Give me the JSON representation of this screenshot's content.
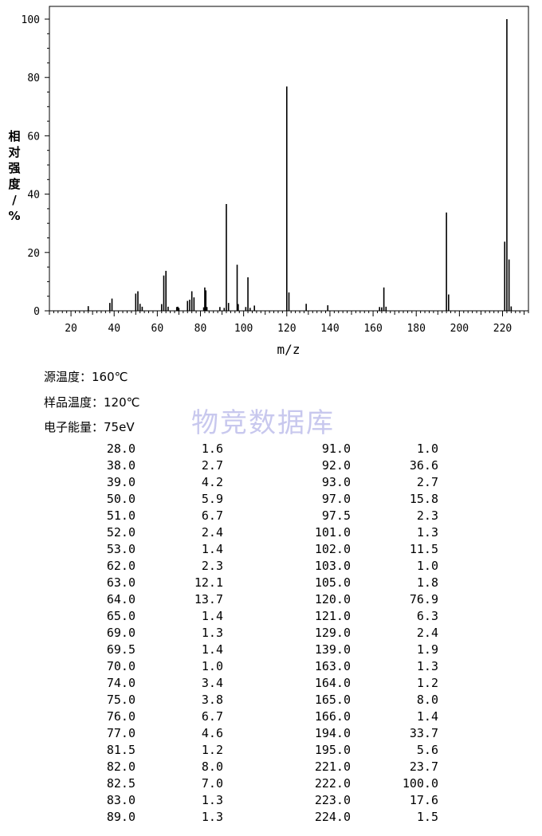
{
  "chart_data": {
    "type": "bar",
    "xlabel": "m/z",
    "ylabel": "相对强度/%",
    "xlim": [
      10,
      232
    ],
    "ylim": [
      0,
      100
    ],
    "x_ticks": [
      20,
      40,
      60,
      80,
      100,
      120,
      140,
      160,
      180,
      200,
      220
    ],
    "y_ticks": [
      0,
      20,
      40,
      60,
      80,
      100
    ],
    "peaks": [
      [
        28.0,
        1.6
      ],
      [
        38.0,
        2.7
      ],
      [
        39.0,
        4.2
      ],
      [
        50.0,
        5.9
      ],
      [
        51.0,
        6.7
      ],
      [
        52.0,
        2.4
      ],
      [
        53.0,
        1.4
      ],
      [
        62.0,
        2.3
      ],
      [
        63.0,
        12.1
      ],
      [
        64.0,
        13.7
      ],
      [
        65.0,
        1.4
      ],
      [
        69.0,
        1.3
      ],
      [
        69.5,
        1.4
      ],
      [
        70.0,
        1.0
      ],
      [
        74.0,
        3.4
      ],
      [
        75.0,
        3.8
      ],
      [
        76.0,
        6.7
      ],
      [
        77.0,
        4.6
      ],
      [
        81.5,
        1.2
      ],
      [
        82.0,
        8.0
      ],
      [
        82.5,
        7.0
      ],
      [
        83.0,
        1.3
      ],
      [
        89.0,
        1.3
      ],
      [
        91.0,
        1.0
      ],
      [
        92.0,
        36.6
      ],
      [
        93.0,
        2.7
      ],
      [
        97.0,
        15.8
      ],
      [
        97.5,
        2.3
      ],
      [
        101.0,
        1.3
      ],
      [
        102.0,
        11.5
      ],
      [
        103.0,
        1.0
      ],
      [
        105.0,
        1.8
      ],
      [
        120.0,
        76.9
      ],
      [
        121.0,
        6.3
      ],
      [
        129.0,
        2.4
      ],
      [
        139.0,
        1.9
      ],
      [
        163.0,
        1.3
      ],
      [
        164.0,
        1.2
      ],
      [
        165.0,
        8.0
      ],
      [
        166.0,
        1.4
      ],
      [
        194.0,
        33.7
      ],
      [
        195.0,
        5.6
      ],
      [
        221.0,
        23.7
      ],
      [
        222.0,
        100.0
      ],
      [
        223.0,
        17.6
      ],
      [
        224.0,
        1.5
      ]
    ]
  },
  "conditions": {
    "source_temp": "源温度：160℃",
    "sample_temp": "样品温度：120℃",
    "electron_energy": "电子能量：75eV"
  },
  "watermark": "物竞数据库",
  "table": {
    "left": [
      [
        "28.0",
        "1.6"
      ],
      [
        "38.0",
        "2.7"
      ],
      [
        "39.0",
        "4.2"
      ],
      [
        "50.0",
        "5.9"
      ],
      [
        "51.0",
        "6.7"
      ],
      [
        "52.0",
        "2.4"
      ],
      [
        "53.0",
        "1.4"
      ],
      [
        "62.0",
        "2.3"
      ],
      [
        "63.0",
        "12.1"
      ],
      [
        "64.0",
        "13.7"
      ],
      [
        "65.0",
        "1.4"
      ],
      [
        "69.0",
        "1.3"
      ],
      [
        "69.5",
        "1.4"
      ],
      [
        "70.0",
        "1.0"
      ],
      [
        "74.0",
        "3.4"
      ],
      [
        "75.0",
        "3.8"
      ],
      [
        "76.0",
        "6.7"
      ],
      [
        "77.0",
        "4.6"
      ],
      [
        "81.5",
        "1.2"
      ],
      [
        "82.0",
        "8.0"
      ],
      [
        "82.5",
        "7.0"
      ],
      [
        "83.0",
        "1.3"
      ],
      [
        "89.0",
        "1.3"
      ]
    ],
    "right": [
      [
        "91.0",
        "1.0"
      ],
      [
        "92.0",
        "36.6"
      ],
      [
        "93.0",
        "2.7"
      ],
      [
        "97.0",
        "15.8"
      ],
      [
        "97.5",
        "2.3"
      ],
      [
        "101.0",
        "1.3"
      ],
      [
        "102.0",
        "11.5"
      ],
      [
        "103.0",
        "1.0"
      ],
      [
        "105.0",
        "1.8"
      ],
      [
        "120.0",
        "76.9"
      ],
      [
        "121.0",
        "6.3"
      ],
      [
        "129.0",
        "2.4"
      ],
      [
        "139.0",
        "1.9"
      ],
      [
        "163.0",
        "1.3"
      ],
      [
        "164.0",
        "1.2"
      ],
      [
        "165.0",
        "8.0"
      ],
      [
        "166.0",
        "1.4"
      ],
      [
        "194.0",
        "33.7"
      ],
      [
        "195.0",
        "5.6"
      ],
      [
        "221.0",
        "23.7"
      ],
      [
        "222.0",
        "100.0"
      ],
      [
        "223.0",
        "17.6"
      ],
      [
        "224.0",
        "1.5"
      ]
    ]
  }
}
